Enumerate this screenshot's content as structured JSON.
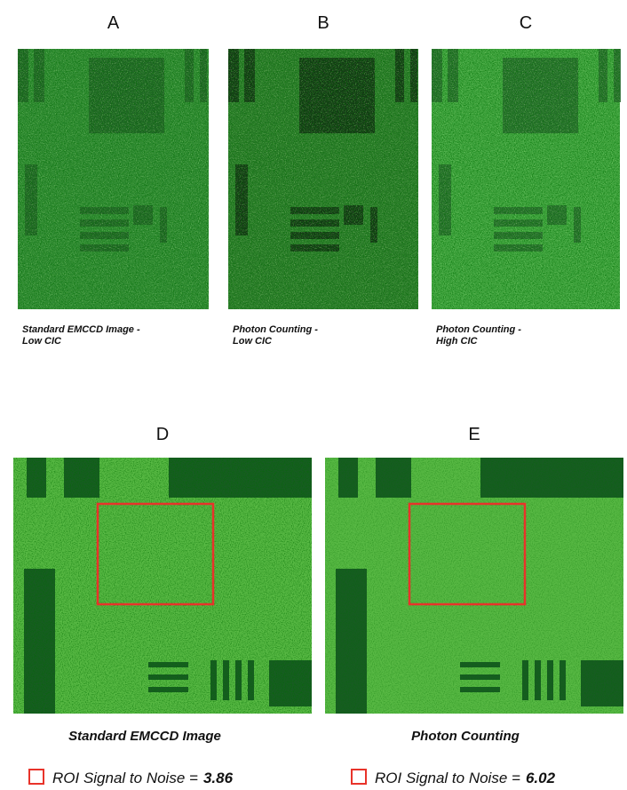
{
  "top_panels": [
    {
      "letter": "A",
      "caption": [
        "Standard EMCCD Image -",
        "Low CIC"
      ]
    },
    {
      "letter": "B",
      "caption": [
        "Photon Counting -",
        "Low CIC"
      ]
    },
    {
      "letter": "C",
      "caption": [
        "Photon Counting -",
        "High CIC"
      ]
    }
  ],
  "bottom_panels": [
    {
      "letter": "D",
      "caption": "Standard EMCCD Image",
      "roi_label": "ROI Signal to Noise =",
      "roi_value": "3.86"
    },
    {
      "letter": "E",
      "caption": "Photon Counting",
      "roi_label": "ROI Signal to Noise =",
      "roi_value": "6.02"
    }
  ]
}
